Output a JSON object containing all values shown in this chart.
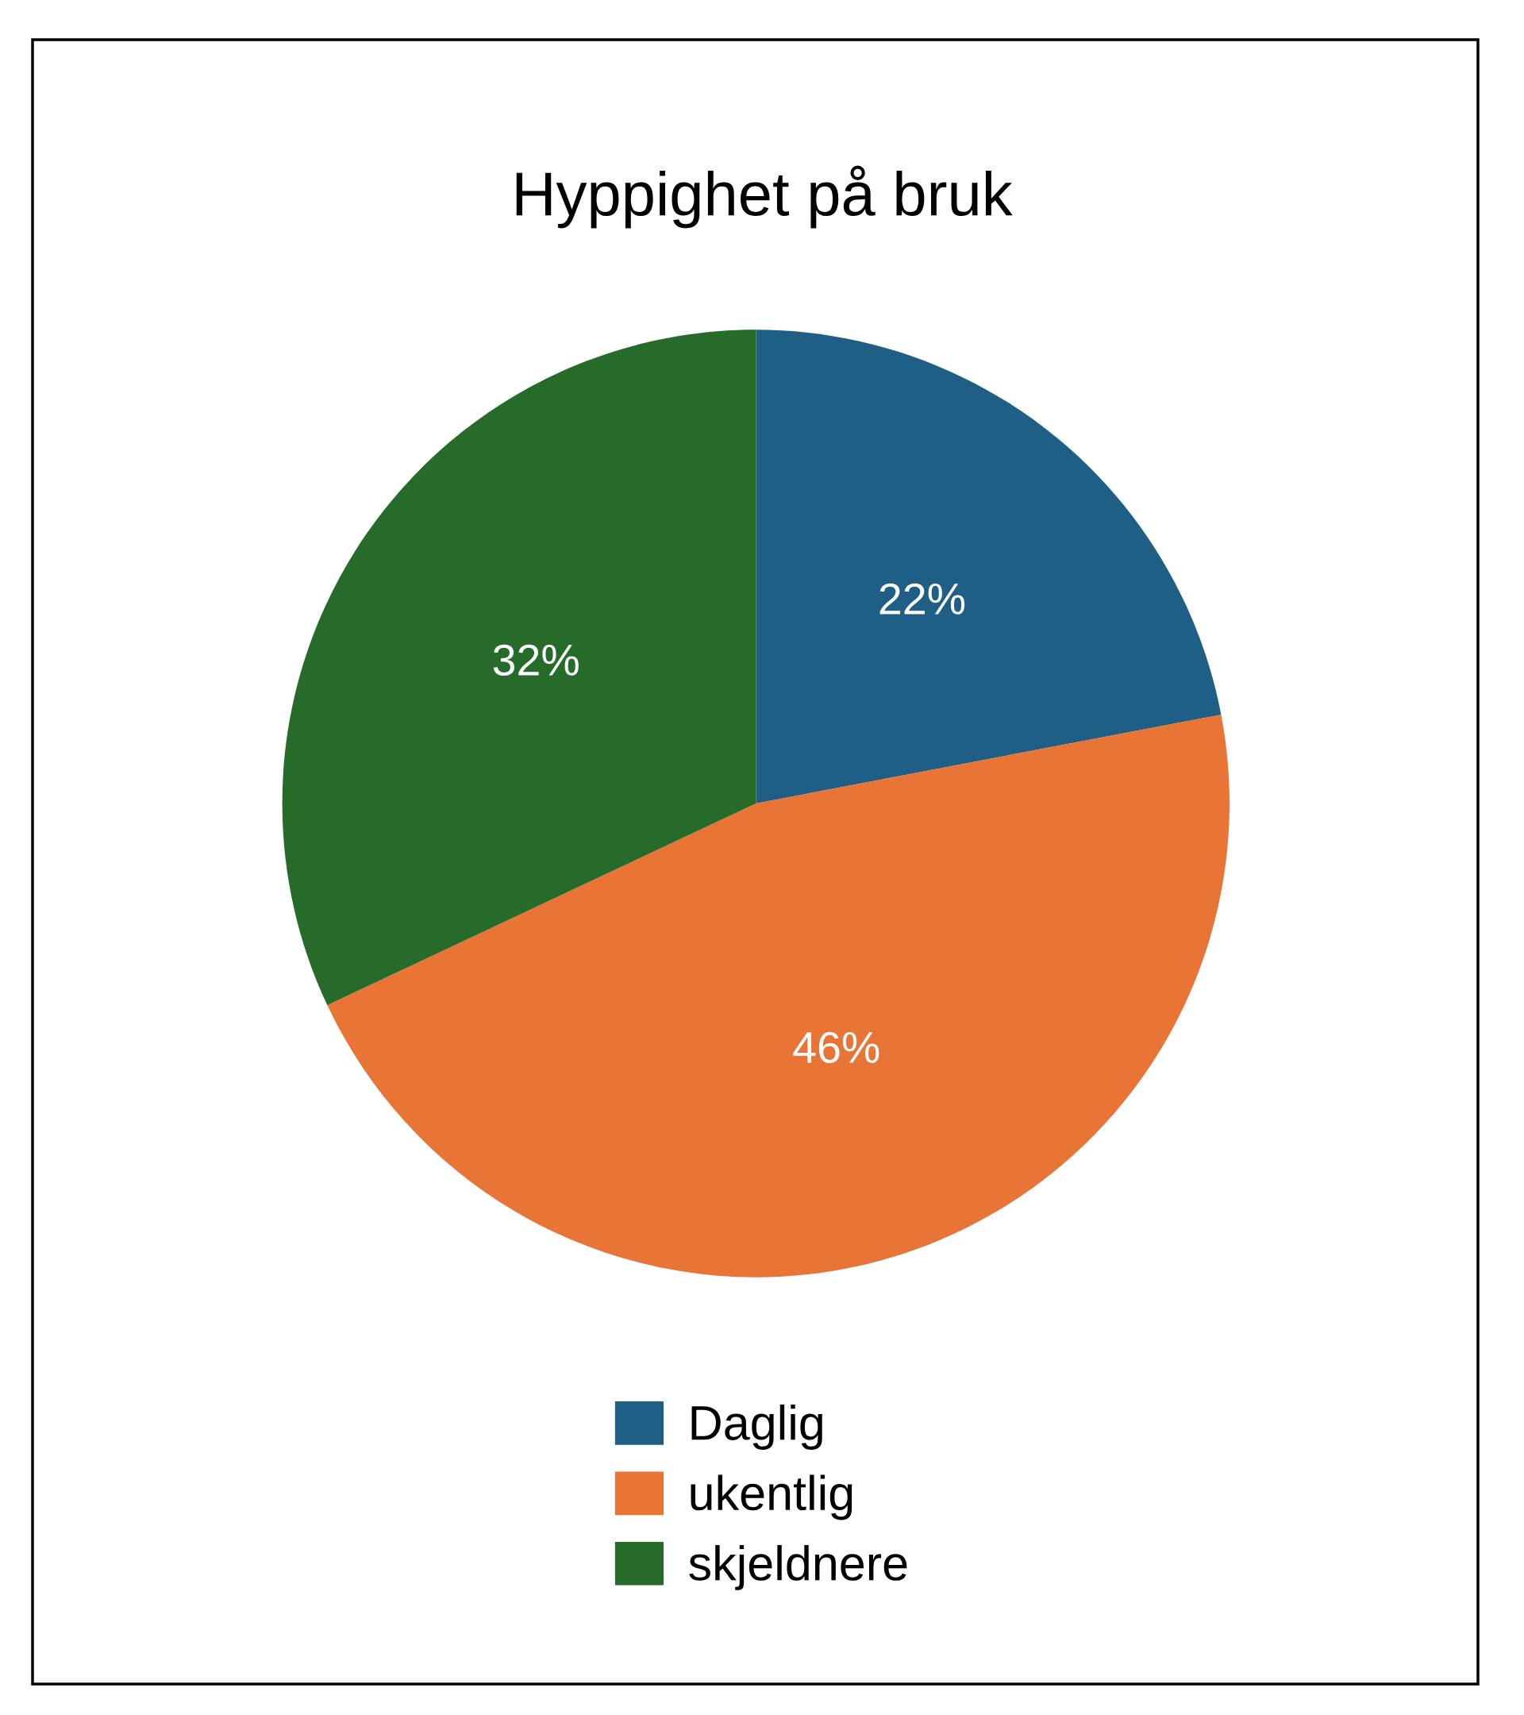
{
  "chart_data": {
    "type": "pie",
    "title": "Hyppighet på bruk",
    "categories": [
      "Daglig",
      "ukentlig",
      "skjeldnere"
    ],
    "values": [
      22,
      46,
      32
    ],
    "colors": [
      "#1f5f85",
      "#e87436",
      "#276b2b"
    ],
    "value_labels": [
      "22%",
      "46%",
      "32%"
    ],
    "legend": "bottom"
  }
}
